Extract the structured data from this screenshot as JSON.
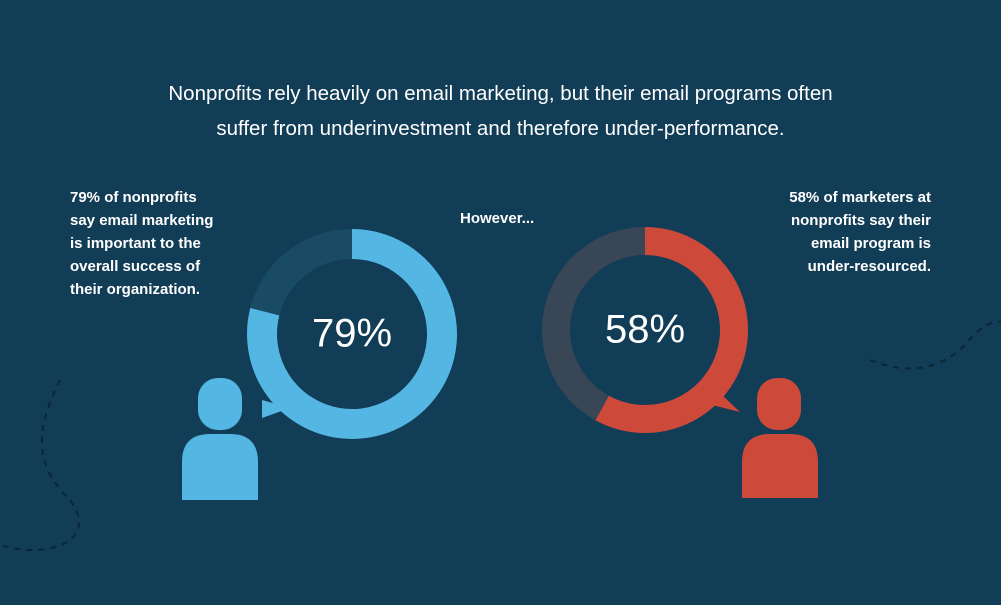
{
  "title": [
    "Nonprofits rely heavily on email marketing, but their email programs often",
    "suffer from underinvestment and therefore under-performance."
  ],
  "note": "However...",
  "chart_data": [
    {
      "type": "donut",
      "caption": [
        "79% of nonprofits",
        "say email marketing",
        "is important to the",
        "overall success of",
        "their organization."
      ],
      "values": [
        79,
        21
      ],
      "value_labels": [
        "79%",
        null
      ],
      "colors": [
        "#54b6e3",
        "#1a4b64"
      ]
    },
    {
      "type": "donut",
      "caption": [
        "58% of marketers at",
        "nonprofits say their",
        "email program is",
        "under-resourced."
      ],
      "values": [
        58,
        42
      ],
      "value_labels": [
        "58%",
        null
      ],
      "colors": [
        "#cd4a3b",
        "#394655"
      ]
    }
  ]
}
